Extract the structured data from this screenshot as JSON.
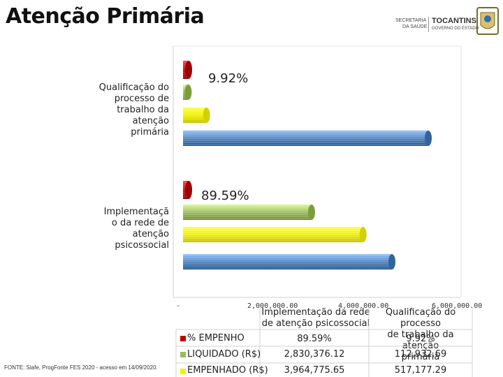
{
  "page_title": "Atenção Primária",
  "logos": {
    "secretaria_line1": "SECRETARIA",
    "secretaria_line2": "DA SAÚDE",
    "tocantins": "TOCANTINS",
    "governo": "GOVERNO DO ESTADO"
  },
  "source": "FONTE: Siafe, ProgFonte FES 2020 - acesso em 14/09/2020.",
  "colors": {
    "pct_empenho": "#c00000",
    "liquidado": "#9bbb59",
    "empenhado": "#f0f000",
    "blue": "#4f81bd"
  },
  "chart_data": {
    "type": "bar",
    "orientation": "horizontal",
    "categories": [
      "Qualificação do processo de trabalho da atenção primária",
      "Implementação da rede de atenção psicossocial"
    ],
    "category_label_lines": [
      [
        "Qualificação do",
        "processo de",
        "trabalho da",
        "atenção",
        "primária"
      ],
      [
        "Implementaçã",
        "o da rede de",
        "atenção",
        "psicossocial"
      ]
    ],
    "series": [
      {
        "name": "% EMPENHO",
        "values": [
          "9.92%",
          "89.59%"
        ],
        "color": "#c00000"
      },
      {
        "name": "LIQUIDADO (R$)",
        "values": [
          112932.69,
          2830376.12
        ],
        "color": "#9bbb59"
      },
      {
        "name": "EMPENHADO (R$)",
        "values": [
          517177.29,
          3964775.65
        ],
        "color": "#f0f000"
      },
      {
        "name": "",
        "values": [
          5400000,
          4600000
        ],
        "color": "#4f81bd"
      }
    ],
    "data_labels": [
      "9.92%",
      "89.59%"
    ],
    "x_ticks": [
      "-",
      "2,000,000.00",
      "4,000,000.00",
      "6,000,000.00"
    ],
    "xlim": [
      0,
      6000000
    ],
    "table": {
      "columns": [
        "Implementação da rede de atenção psicossocial",
        "Qualificação do processo de trabalho da atenção primária"
      ],
      "column_lines": [
        [
          "Implementação da rede",
          "de atenção psicossocial"
        ],
        [
          "Qualificação do processo",
          "de trabalho da atenção",
          "primária"
        ]
      ],
      "rows": [
        {
          "label": "% EMPENHO",
          "cells": [
            "89.59%",
            "9.92%"
          ]
        },
        {
          "label": "LIQUIDADO (R$)",
          "cells": [
            "2,830,376.12",
            "112,932.69"
          ]
        },
        {
          "label": "EMPENHADO (R$)",
          "cells": [
            "3,964,775.65",
            "517,177.29"
          ]
        }
      ]
    }
  }
}
